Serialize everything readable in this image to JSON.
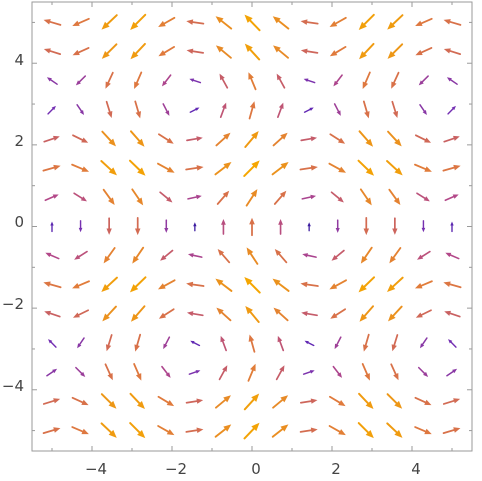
{
  "chart_data": {
    "type": "vector_field",
    "title": "",
    "xlabel": "",
    "ylabel": "",
    "xlim": [
      -5.5,
      5.5
    ],
    "ylim": [
      -5.5,
      5.5
    ],
    "grid": false,
    "frame": true,
    "x_ticks": [
      -4,
      -2,
      0,
      2,
      4
    ],
    "y_ticks": [
      -4,
      -2,
      0,
      2,
      4
    ],
    "x_tick_labels": [
      "−4",
      "−2",
      "0",
      "2",
      "4"
    ],
    "y_tick_labels": [
      "−4",
      "−2",
      "0",
      "2",
      "4"
    ],
    "field": {
      "x_range": [
        -5.0,
        5.0
      ],
      "y_range": [
        -5.0,
        5.0
      ],
      "grid_points_per_axis": 15,
      "x_component": "sin(y)",
      "y_component": "cos(x)",
      "color_function": "vector magnitude",
      "color_scale": [
        "#1a0f8f",
        "#6a2bb8",
        "#b2478a",
        "#e07a3c",
        "#f5a700"
      ]
    }
  }
}
